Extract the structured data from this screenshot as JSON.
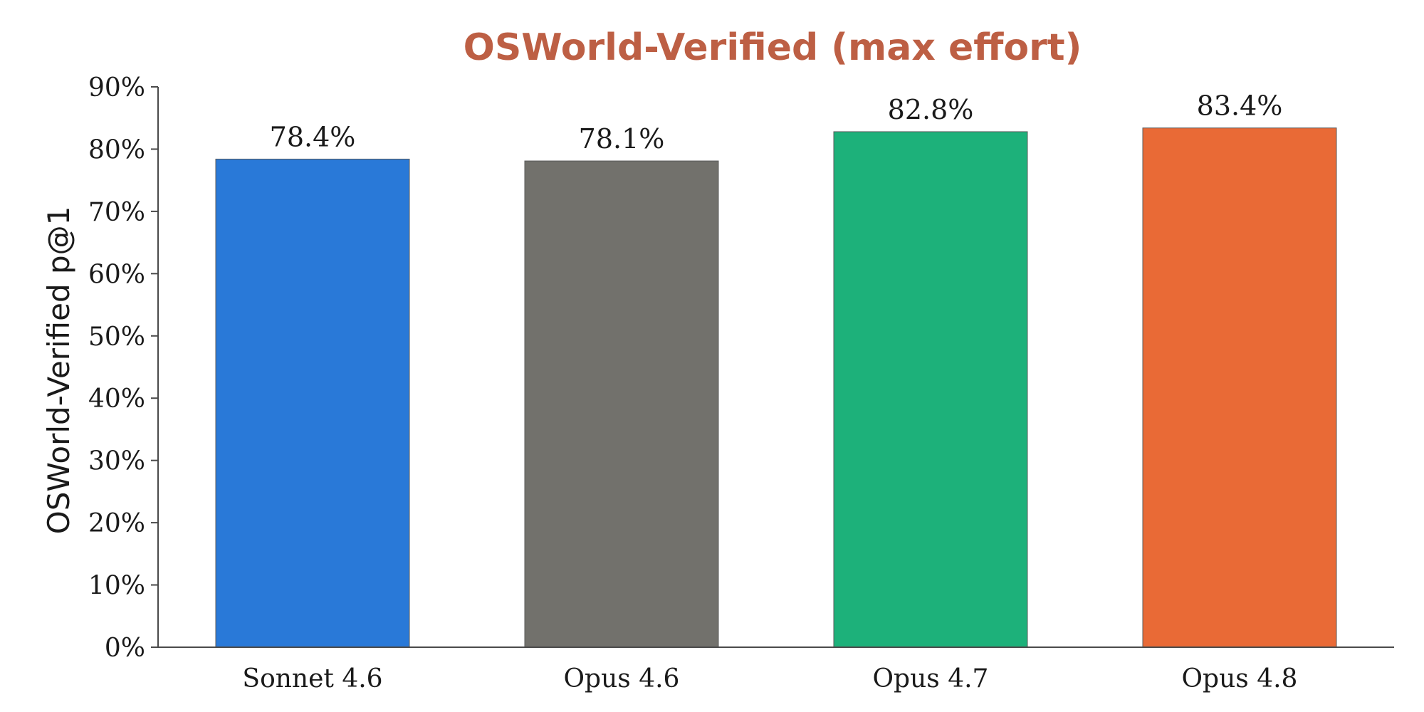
{
  "chart_data": {
    "type": "bar",
    "title": "OSWorld-Verified (max effort)",
    "ylabel": "OSWorld-Verified p@1",
    "xlabel": "",
    "categories": [
      "Sonnet 4.6",
      "Opus 4.6",
      "Opus 4.7",
      "Opus 4.8"
    ],
    "values": [
      78.4,
      78.1,
      82.8,
      83.4
    ],
    "data_labels": [
      "78.4%",
      "78.1%",
      "82.8%",
      "83.4%"
    ],
    "bar_colors": [
      "#2979d8",
      "#72716c",
      "#1db17a",
      "#e96a36"
    ],
    "title_color": "#bd5f44",
    "ylim": [
      0,
      90
    ],
    "yticks": [
      "0%",
      "10%",
      "20%",
      "30%",
      "40%",
      "50%",
      "60%",
      "70%",
      "80%",
      "90%"
    ],
    "ytick_values": [
      0,
      10,
      20,
      30,
      40,
      50,
      60,
      70,
      80,
      90
    ],
    "grid": false,
    "legend": false
  }
}
